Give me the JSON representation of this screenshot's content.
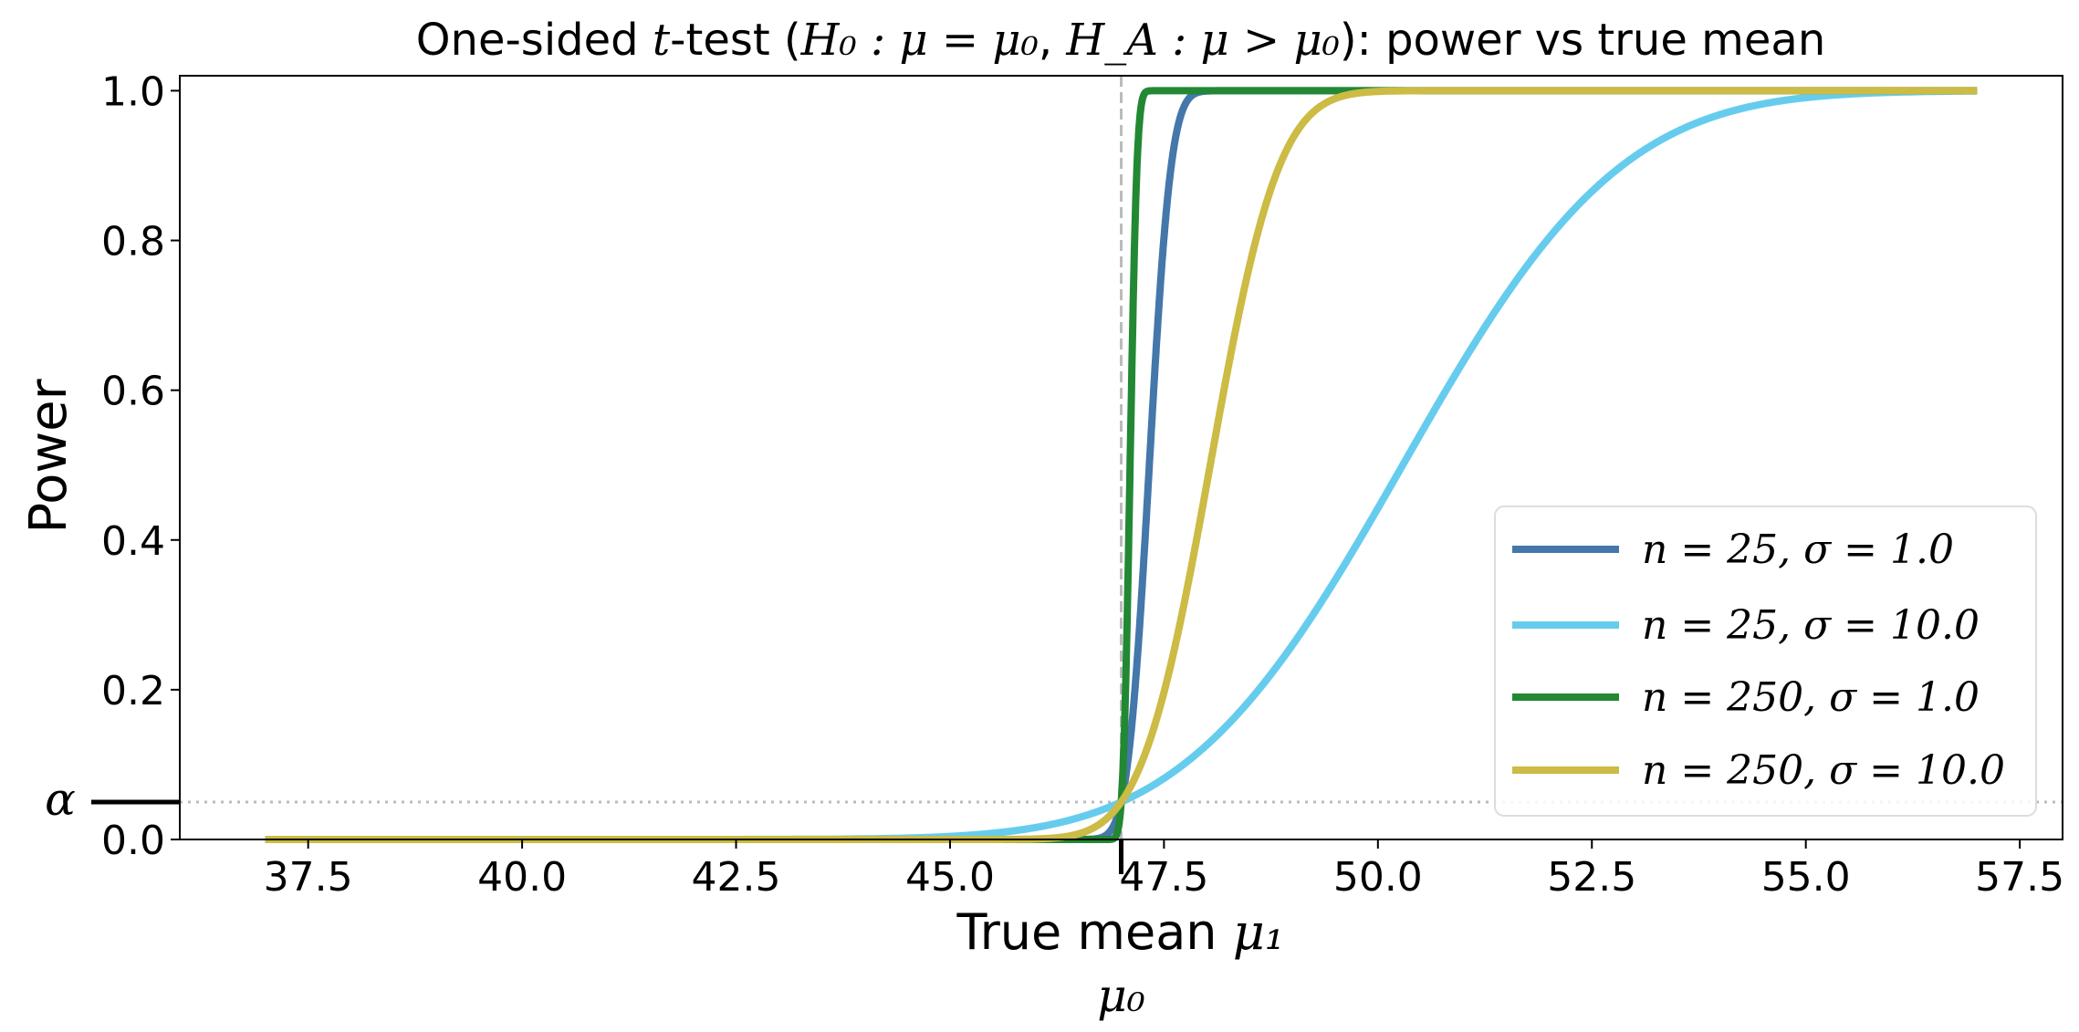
{
  "chart_data": {
    "type": "line",
    "title_prefix": "One-sided ",
    "title_t": "t",
    "title_mid": "-test (",
    "title_h0": "H₀ : μ = μ₀",
    "title_sep": ", ",
    "title_ha": "H_A : μ > μ₀",
    "title_suffix": "): power vs true mean",
    "xlabel": "True mean ",
    "xlabel_math": "μ₁",
    "ylabel": "Power",
    "xlim": [
      36.0,
      58.0
    ],
    "ylim": [
      0.0,
      1.02
    ],
    "xticks": [
      "37.5",
      "40.0",
      "42.5",
      "45.0",
      "47.5",
      "50.0",
      "52.5",
      "55.0",
      "57.5"
    ],
    "yticks": [
      "0.0",
      "0.2",
      "0.4",
      "0.6",
      "0.8",
      "1.0"
    ],
    "mu0": 47.0,
    "mu0_label": "μ₀",
    "alpha": 0.05,
    "alpha_label": "α",
    "x_range": [
      37.0,
      57.0
    ],
    "legend_position": "lower-right",
    "series": [
      {
        "name": "n = 25,  σ = 1.0",
        "n": 25,
        "sigma": 1.0,
        "color": "#4477AA"
      },
      {
        "name": "n = 25,  σ = 10.0",
        "n": 25,
        "sigma": 10.0,
        "color": "#66CCEE"
      },
      {
        "name": "n = 250,  σ = 1.0",
        "n": 250,
        "sigma": 1.0,
        "color": "#228833"
      },
      {
        "name": "n = 250,  σ = 10.0",
        "n": 250,
        "sigma": 10.0,
        "color": "#CCBB44"
      }
    ]
  }
}
